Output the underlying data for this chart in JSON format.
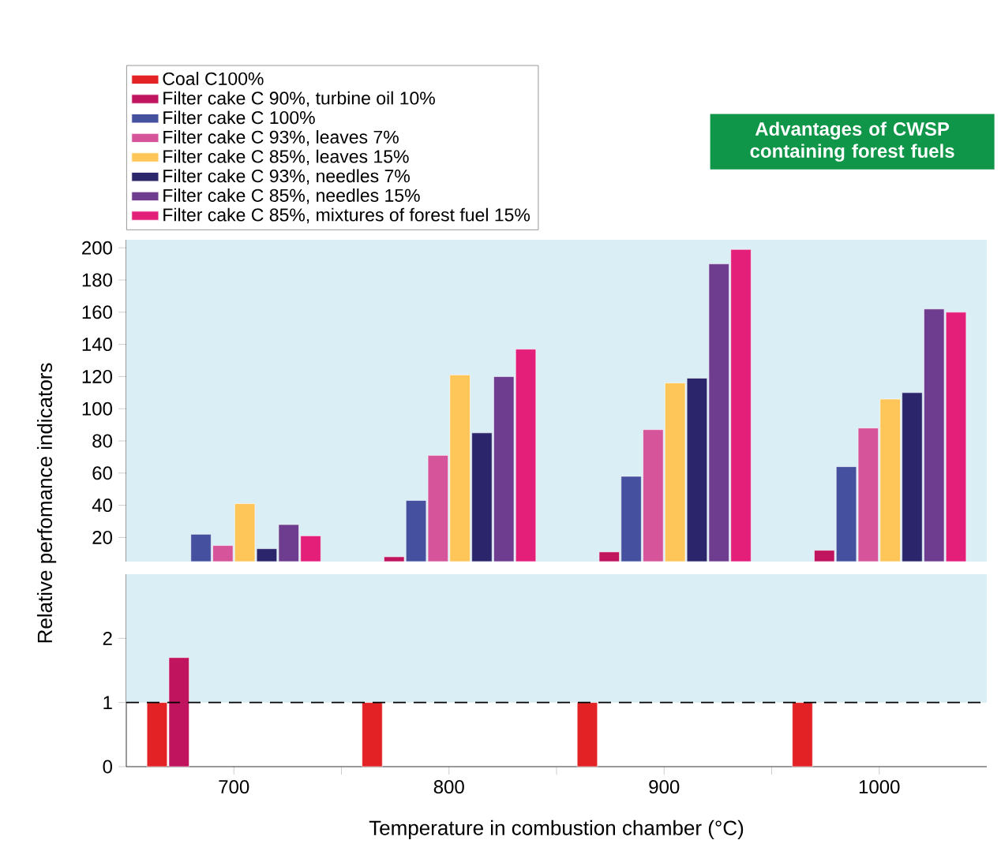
{
  "chart_data": [
    {
      "type": "bar",
      "categories": [
        "700",
        "800",
        "900",
        "1000"
      ],
      "ylim": [
        5,
        205
      ],
      "yticks": [
        20,
        40,
        60,
        80,
        100,
        120,
        140,
        160,
        180,
        200
      ],
      "tick_labels": "y",
      "legend": "top",
      "series": [
        {
          "name": "Coal C100%",
          "color": "#e32226",
          "values": [
            null,
            null,
            null,
            null
          ]
        },
        {
          "name": "Filter cake C 90%, turbine oil 10%",
          "color": "#c0145e",
          "values": [
            null,
            8,
            11,
            12
          ]
        },
        {
          "name": "Filter cake C 100%",
          "color": "#45519f",
          "values": [
            22,
            43,
            58,
            64
          ]
        },
        {
          "name": "Filter cake C 93%, leaves 7%",
          "color": "#d5549a",
          "values": [
            15,
            71,
            87,
            88
          ]
        },
        {
          "name": "Filter cake C 85%, leaves 15%",
          "color": "#fec559",
          "values": [
            41,
            121,
            116,
            106
          ]
        },
        {
          "name": "Filter cake C 93%, needles 7%",
          "color": "#2b266c",
          "values": [
            13,
            85,
            119,
            110
          ]
        },
        {
          "name": "Filter cake C 85%, needles 15%",
          "color": "#6f3d8f",
          "values": [
            28,
            120,
            190,
            162
          ]
        },
        {
          "name": "Filter cake C 85%, mixtures of forest fuel 15%",
          "color": "#e31f7a",
          "values": [
            21,
            137,
            199,
            160
          ]
        }
      ],
      "bands": [
        {
          "axis": "y",
          "from": 5,
          "to": 205,
          "color": "#daeef5"
        }
      ],
      "annotations": [
        "Advantages of CWSP containing forest fuels"
      ]
    },
    {
      "type": "bar",
      "categories": [
        "700",
        "800",
        "900",
        "1000"
      ],
      "ylim": [
        0,
        3
      ],
      "yticks": [
        0,
        1,
        2
      ],
      "xlabel": "Temperature in combustion chamber (°C)",
      "ylabel": "Relative perfomance indicators",
      "series": [
        {
          "color": "#e32226",
          "values": [
            1,
            1,
            1,
            1
          ]
        },
        {
          "color": "#c0145e",
          "values": [
            1.7,
            null,
            null,
            null
          ]
        },
        {
          "color": "#45519f",
          "values": [
            null,
            null,
            null,
            null
          ]
        },
        {
          "color": "#d5549a",
          "values": [
            null,
            null,
            null,
            null
          ]
        },
        {
          "color": "#fec559",
          "values": [
            null,
            null,
            null,
            null
          ]
        },
        {
          "color": "#2b266c",
          "values": [
            null,
            null,
            null,
            null
          ]
        },
        {
          "color": "#6f3d8f",
          "values": [
            null,
            null,
            null,
            null
          ]
        },
        {
          "color": "#e31f7a",
          "values": [
            null,
            null,
            null,
            null
          ]
        }
      ],
      "bands": [
        {
          "axis": "y",
          "from": 1,
          "to": 3,
          "color": "#daeef5"
        }
      ],
      "ref_lines": [
        {
          "axis": "y",
          "value": 1,
          "color": "#000000",
          "line_style": "dashed"
        }
      ]
    }
  ]
}
